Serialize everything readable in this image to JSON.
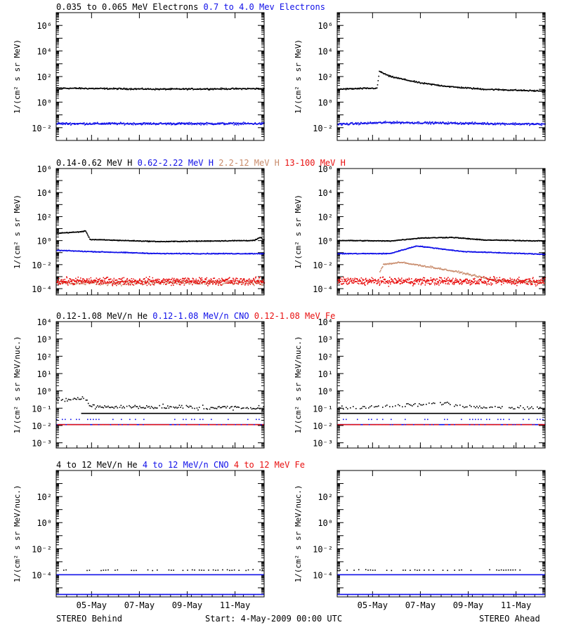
{
  "colors": {
    "black": "#000000",
    "blue": "#1010e8",
    "tan": "#c88a6a",
    "red": "#e81010"
  },
  "footer": {
    "left": "STEREO Behind",
    "center": "Start:  4-May-2009 00:00 UTC",
    "right": "STEREO Ahead"
  },
  "chart_data": [
    {
      "id": "electrons",
      "type": "scatter",
      "scale": "log",
      "ylabel": "1/(cm² s sr MeV)",
      "legend": [
        {
          "text": "0.035 to 0.065 MeV Electrons",
          "color": "black"
        },
        {
          "text": "0.7 to 4.0 Mev Electrons",
          "color": "blue"
        }
      ],
      "yticks": [
        {
          "exp": -2
        },
        {
          "exp": 0
        },
        {
          "exp": 2
        },
        {
          "exp": 4
        },
        {
          "exp": 6
        }
      ],
      "ylim": [
        0.001,
        10000000
      ],
      "behind": {
        "series": [
          {
            "color": "black",
            "profile": [
              [
                0,
                12
              ],
              [
                0.5,
                10
              ],
              [
                1,
                11
              ]
            ],
            "noise": 0.08,
            "density": 1.2
          },
          {
            "color": "blue",
            "profile": [
              [
                0,
                0.02
              ],
              [
                1,
                0.02
              ]
            ],
            "noise": 0.12,
            "density": 1.4
          }
        ]
      },
      "ahead": {
        "series": [
          {
            "color": "black",
            "profile": [
              [
                0,
                10
              ],
              [
                0.19,
                12
              ],
              [
                0.2,
                250
              ],
              [
                0.25,
                100
              ],
              [
                0.4,
                30
              ],
              [
                0.55,
                15
              ],
              [
                0.7,
                10
              ],
              [
                1,
                7
              ]
            ],
            "noise": 0.08,
            "density": 1.2
          },
          {
            "color": "blue",
            "profile": [
              [
                0,
                0.018
              ],
              [
                0.25,
                0.025
              ],
              [
                1,
                0.018
              ]
            ],
            "noise": 0.12,
            "density": 1.4
          }
        ]
      }
    },
    {
      "id": "protons",
      "type": "scatter",
      "scale": "log",
      "ylabel": "1/(cm² s sr MeV)",
      "legend": [
        {
          "text": "0.14-0.62 MeV H",
          "color": "black"
        },
        {
          "text": "0.62-2.22 MeV H",
          "color": "blue"
        },
        {
          "text": "2.2-12 MeV H",
          "color": "tan"
        },
        {
          "text": "13-100 MeV H",
          "color": "red"
        }
      ],
      "yticks": [
        {
          "exp": -4
        },
        {
          "exp": -2
        },
        {
          "exp": 0
        },
        {
          "exp": 2
        },
        {
          "exp": 4
        },
        {
          "exp": 6
        }
      ],
      "ylim": [
        3e-05,
        1000000
      ],
      "behind": {
        "series": [
          {
            "color": "black",
            "profile": [
              [
                0,
                4
              ],
              [
                0.1,
                5
              ],
              [
                0.14,
                6
              ],
              [
                0.16,
                1.2
              ],
              [
                0.5,
                0.8
              ],
              [
                0.95,
                1
              ],
              [
                0.98,
                1.8
              ],
              [
                1,
                1
              ]
            ],
            "noise": 0.05,
            "density": 1.3
          },
          {
            "color": "blue",
            "profile": [
              [
                0,
                0.15
              ],
              [
                0.15,
                0.12
              ],
              [
                0.5,
                0.08
              ],
              [
                1,
                0.08
              ]
            ],
            "noise": 0.05,
            "density": 1.3
          },
          {
            "color": "tan",
            "profile": [
              [
                0,
                0.0003
              ],
              [
                1,
                0.0003
              ]
            ],
            "noise": 0.3,
            "density": 1.0
          },
          {
            "color": "red",
            "profile": [
              [
                0,
                0.0004
              ],
              [
                1,
                0.0004
              ]
            ],
            "noise": 0.45,
            "density": 2.0
          }
        ]
      },
      "ahead": {
        "series": [
          {
            "color": "black",
            "profile": [
              [
                0,
                1
              ],
              [
                0.25,
                0.9
              ],
              [
                0.4,
                1.6
              ],
              [
                0.55,
                1.8
              ],
              [
                0.7,
                1.1
              ],
              [
                1,
                0.9
              ]
            ],
            "noise": 0.05,
            "density": 1.3
          },
          {
            "color": "blue",
            "profile": [
              [
                0,
                0.08
              ],
              [
                0.25,
                0.08
              ],
              [
                0.38,
                0.35
              ],
              [
                0.45,
                0.25
              ],
              [
                0.6,
                0.12
              ],
              [
                1,
                0.07
              ]
            ],
            "noise": 0.05,
            "density": 1.3
          },
          {
            "color": "tan",
            "profile": [
              [
                0.2,
                0.002
              ],
              [
                0.22,
                0.01
              ],
              [
                0.3,
                0.015
              ],
              [
                0.45,
                0.006
              ],
              [
                0.6,
                0.002
              ],
              [
                0.75,
                0.0005
              ],
              [
                1,
                0.0003
              ]
            ],
            "noise": 0.1,
            "density": 1.0
          },
          {
            "color": "red",
            "profile": [
              [
                0,
                0.0004
              ],
              [
                1,
                0.0004
              ]
            ],
            "noise": 0.45,
            "density": 2.0
          }
        ]
      }
    },
    {
      "id": "ions-low",
      "type": "scatter",
      "scale": "log",
      "ylabel": "1/(cm² s sr MeV/nuc.)",
      "legend": [
        {
          "text": "0.12-1.08 MeV/n He",
          "color": "black"
        },
        {
          "text": "0.12-1.08 MeV/n CNO",
          "color": "blue"
        },
        {
          "text": "0.12-1.08 MeV Fe",
          "color": "red"
        }
      ],
      "yticks": [
        {
          "exp": -3
        },
        {
          "exp": -2
        },
        {
          "exp": -1
        },
        {
          "exp": 0
        },
        {
          "exp": 1
        },
        {
          "exp": 2
        },
        {
          "exp": 3
        },
        {
          "exp": 4
        }
      ],
      "ylim": [
        0.0005,
        10000
      ],
      "behind": {
        "series": [
          {
            "color": "black",
            "profile": [
              [
                0,
                0.3
              ],
              [
                0.14,
                0.35
              ],
              [
                0.16,
                0.12
              ],
              [
                1,
                0.1
              ]
            ],
            "noise": 0.2,
            "density": 0.6
          },
          {
            "color": "blue",
            "profile": [
              [
                0,
                0.011
              ],
              [
                1,
                0.011
              ]
            ],
            "noise": 0.0,
            "density": 1.0
          },
          {
            "color": "red",
            "profile": [
              [
                0,
                0.011
              ],
              [
                1,
                0.011
              ]
            ],
            "noise": 0.0,
            "density": 0.6
          },
          {
            "color": "blue",
            "profile": [
              [
                0,
                0.022
              ],
              [
                1,
                0.022
              ]
            ],
            "noise": 0.0,
            "density": 0.25
          }
        ]
      },
      "ahead": {
        "series": [
          {
            "color": "black",
            "profile": [
              [
                0,
                0.1
              ],
              [
                0.4,
                0.15
              ],
              [
                0.5,
                0.2
              ],
              [
                0.6,
                0.13
              ],
              [
                1,
                0.1
              ]
            ],
            "noise": 0.15,
            "density": 0.5
          },
          {
            "color": "blue",
            "profile": [
              [
                0,
                0.011
              ],
              [
                1,
                0.011
              ]
            ],
            "noise": 0.0,
            "density": 1.0
          },
          {
            "color": "red",
            "profile": [
              [
                0,
                0.011
              ],
              [
                1,
                0.011
              ]
            ],
            "noise": 0.0,
            "density": 0.6
          },
          {
            "color": "blue",
            "profile": [
              [
                0,
                0.022
              ],
              [
                1,
                0.022
              ]
            ],
            "noise": 0.0,
            "density": 0.25
          }
        ]
      },
      "hlines": [
        {
          "value": 0.05,
          "color": "black",
          "from": 0.12,
          "to": 1,
          "panel": "behind"
        },
        {
          "value": 0.05,
          "color": "black",
          "from": 0,
          "to": 1,
          "panel": "ahead"
        }
      ]
    },
    {
      "id": "ions-high",
      "type": "scatter",
      "scale": "log",
      "ylabel": "1/(cm² s sr MeV/nuc.)",
      "legend": [
        {
          "text": "4 to 12 MeV/n He",
          "color": "black"
        },
        {
          "text": "4 to 12 MeV/n CNO",
          "color": "blue"
        },
        {
          "text": "4 to 12 MeV Fe",
          "color": "red"
        }
      ],
      "yticks": [
        {
          "exp": -4
        },
        {
          "exp": -2
        },
        {
          "exp": 0
        },
        {
          "exp": 2
        }
      ],
      "ylim": [
        2e-06,
        10000
      ],
      "behind": {
        "series": [
          {
            "color": "black",
            "profile": [
              [
                0,
                0.00022
              ],
              [
                1,
                0.00022
              ]
            ],
            "noise": 0.05,
            "density": 0.3
          },
          {
            "color": "blue",
            "profile": [
              [
                0,
                3e-06
              ],
              [
                1,
                3e-06
              ]
            ],
            "noise": 0.0,
            "density": 0.8
          }
        ]
      },
      "ahead": {
        "series": [
          {
            "color": "black",
            "profile": [
              [
                0,
                0.00022
              ],
              [
                1,
                0.00022
              ]
            ],
            "noise": 0.05,
            "density": 0.3
          },
          {
            "color": "blue",
            "profile": [
              [
                0,
                3e-06
              ],
              [
                1,
                3e-06
              ]
            ],
            "noise": 0.0,
            "density": 0.8
          }
        ]
      },
      "hlines": [
        {
          "value": 0.0001,
          "color": "blue",
          "from": 0,
          "to": 1,
          "panel": "behind"
        },
        {
          "value": 0.0001,
          "color": "blue",
          "from": 0,
          "to": 1,
          "panel": "ahead"
        }
      ]
    }
  ],
  "x_axis": {
    "tick_labels": [
      "05-May",
      "07-May",
      "09-May",
      "11-May"
    ]
  }
}
